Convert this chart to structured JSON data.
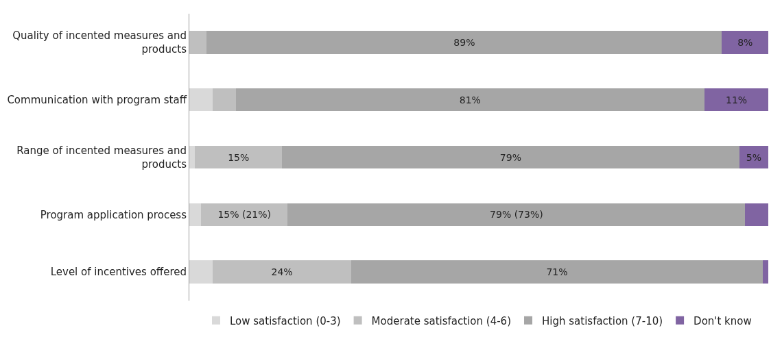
{
  "chart_data": {
    "type": "bar",
    "orientation": "horizontal",
    "stacked": true,
    "legend": "bottom",
    "xlim": [
      0,
      100
    ],
    "categories": [
      "Quality of incented measures and products",
      "Communication with program staff",
      "Range of incented measures and products",
      "Program application process",
      "Level of incentives offered"
    ],
    "series": [
      {
        "name": "Low satisfaction (0-3)",
        "color": "#d9d9d9",
        "values": [
          0,
          4,
          1,
          2,
          4
        ]
      },
      {
        "name": "Moderate satisfaction (4-6)",
        "color": "#bfbfbf",
        "values": [
          3,
          4,
          15,
          15,
          24
        ],
        "value_labels": [
          null,
          null,
          "15%",
          "15% (21%)",
          "24%"
        ]
      },
      {
        "name": "High satisfaction (7-10)",
        "color": "#a6a6a6",
        "values": [
          89,
          81,
          79,
          79,
          71
        ],
        "value_labels": [
          "89%",
          "81%",
          "79%",
          "79% (73%)",
          "71%"
        ]
      },
      {
        "name": "Don't know",
        "color": "#8064a2",
        "values": [
          8,
          11,
          5,
          4,
          1
        ],
        "value_labels": [
          "8%",
          "11%",
          "5%",
          null,
          null
        ]
      }
    ]
  }
}
